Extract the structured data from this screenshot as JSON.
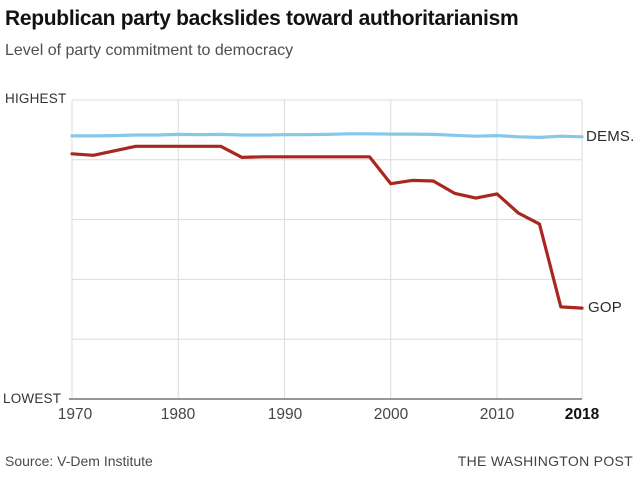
{
  "header": {
    "title": "Republican party backslides toward authoritarianism",
    "subtitle": "Level of party commitment to democracy"
  },
  "chart_data": {
    "type": "line",
    "title": "Republican party backslides toward authoritarianism",
    "subtitle": "Level of party commitment to democracy",
    "xlabel": "",
    "ylabel": "Level of party commitment to democracy",
    "xlim": [
      1970,
      2018
    ],
    "ylim": [
      0,
      1
    ],
    "grid": true,
    "y_axis": {
      "top_label": "HIGHEST",
      "bottom_label": "LOWEST"
    },
    "x_ticks": [
      {
        "year": 1970,
        "label": "1970",
        "bold": false
      },
      {
        "year": 1980,
        "label": "1980",
        "bold": false
      },
      {
        "year": 1990,
        "label": "1990",
        "bold": false
      },
      {
        "year": 2000,
        "label": "2000",
        "bold": false
      },
      {
        "year": 2010,
        "label": "2010",
        "bold": false
      },
      {
        "year": 2018,
        "label": "2018",
        "bold": true
      }
    ],
    "x": [
      1970,
      1972,
      1974,
      1976,
      1978,
      1980,
      1982,
      1984,
      1986,
      1988,
      1990,
      1992,
      1994,
      1996,
      1998,
      2000,
      2002,
      2004,
      2006,
      2008,
      2010,
      2012,
      2014,
      2016,
      2018
    ],
    "series": [
      {
        "name": "DEMS.",
        "color": "#85c8ec",
        "values": [
          0.88,
          0.88,
          0.881,
          0.883,
          0.883,
          0.885,
          0.884,
          0.885,
          0.883,
          0.883,
          0.884,
          0.884,
          0.885,
          0.887,
          0.887,
          0.886,
          0.886,
          0.885,
          0.882,
          0.879,
          0.881,
          0.877,
          0.875,
          0.879,
          0.877
        ]
      },
      {
        "name": "GOP",
        "color": "#a8271e",
        "values": [
          0.82,
          0.815,
          0.83,
          0.845,
          0.845,
          0.845,
          0.845,
          0.845,
          0.808,
          0.81,
          0.81,
          0.81,
          0.81,
          0.81,
          0.81,
          0.72,
          0.731,
          0.729,
          0.688,
          0.672,
          0.686,
          0.622,
          0.585,
          0.308,
          0.304
        ]
      }
    ],
    "legend_position": "right-end-of-lines",
    "colors": {
      "grid": "#dcdcdc",
      "axis": "#757575",
      "dems_line": "#85c8ec",
      "gop_line": "#a8271e"
    }
  },
  "labels": {
    "highest": "HIGHEST",
    "lowest": "LOWEST",
    "dems": "DEMS.",
    "gop": "GOP"
  },
  "footer": {
    "source": "Source: V-Dem Institute",
    "credit": "THE WASHINGTON POST"
  }
}
